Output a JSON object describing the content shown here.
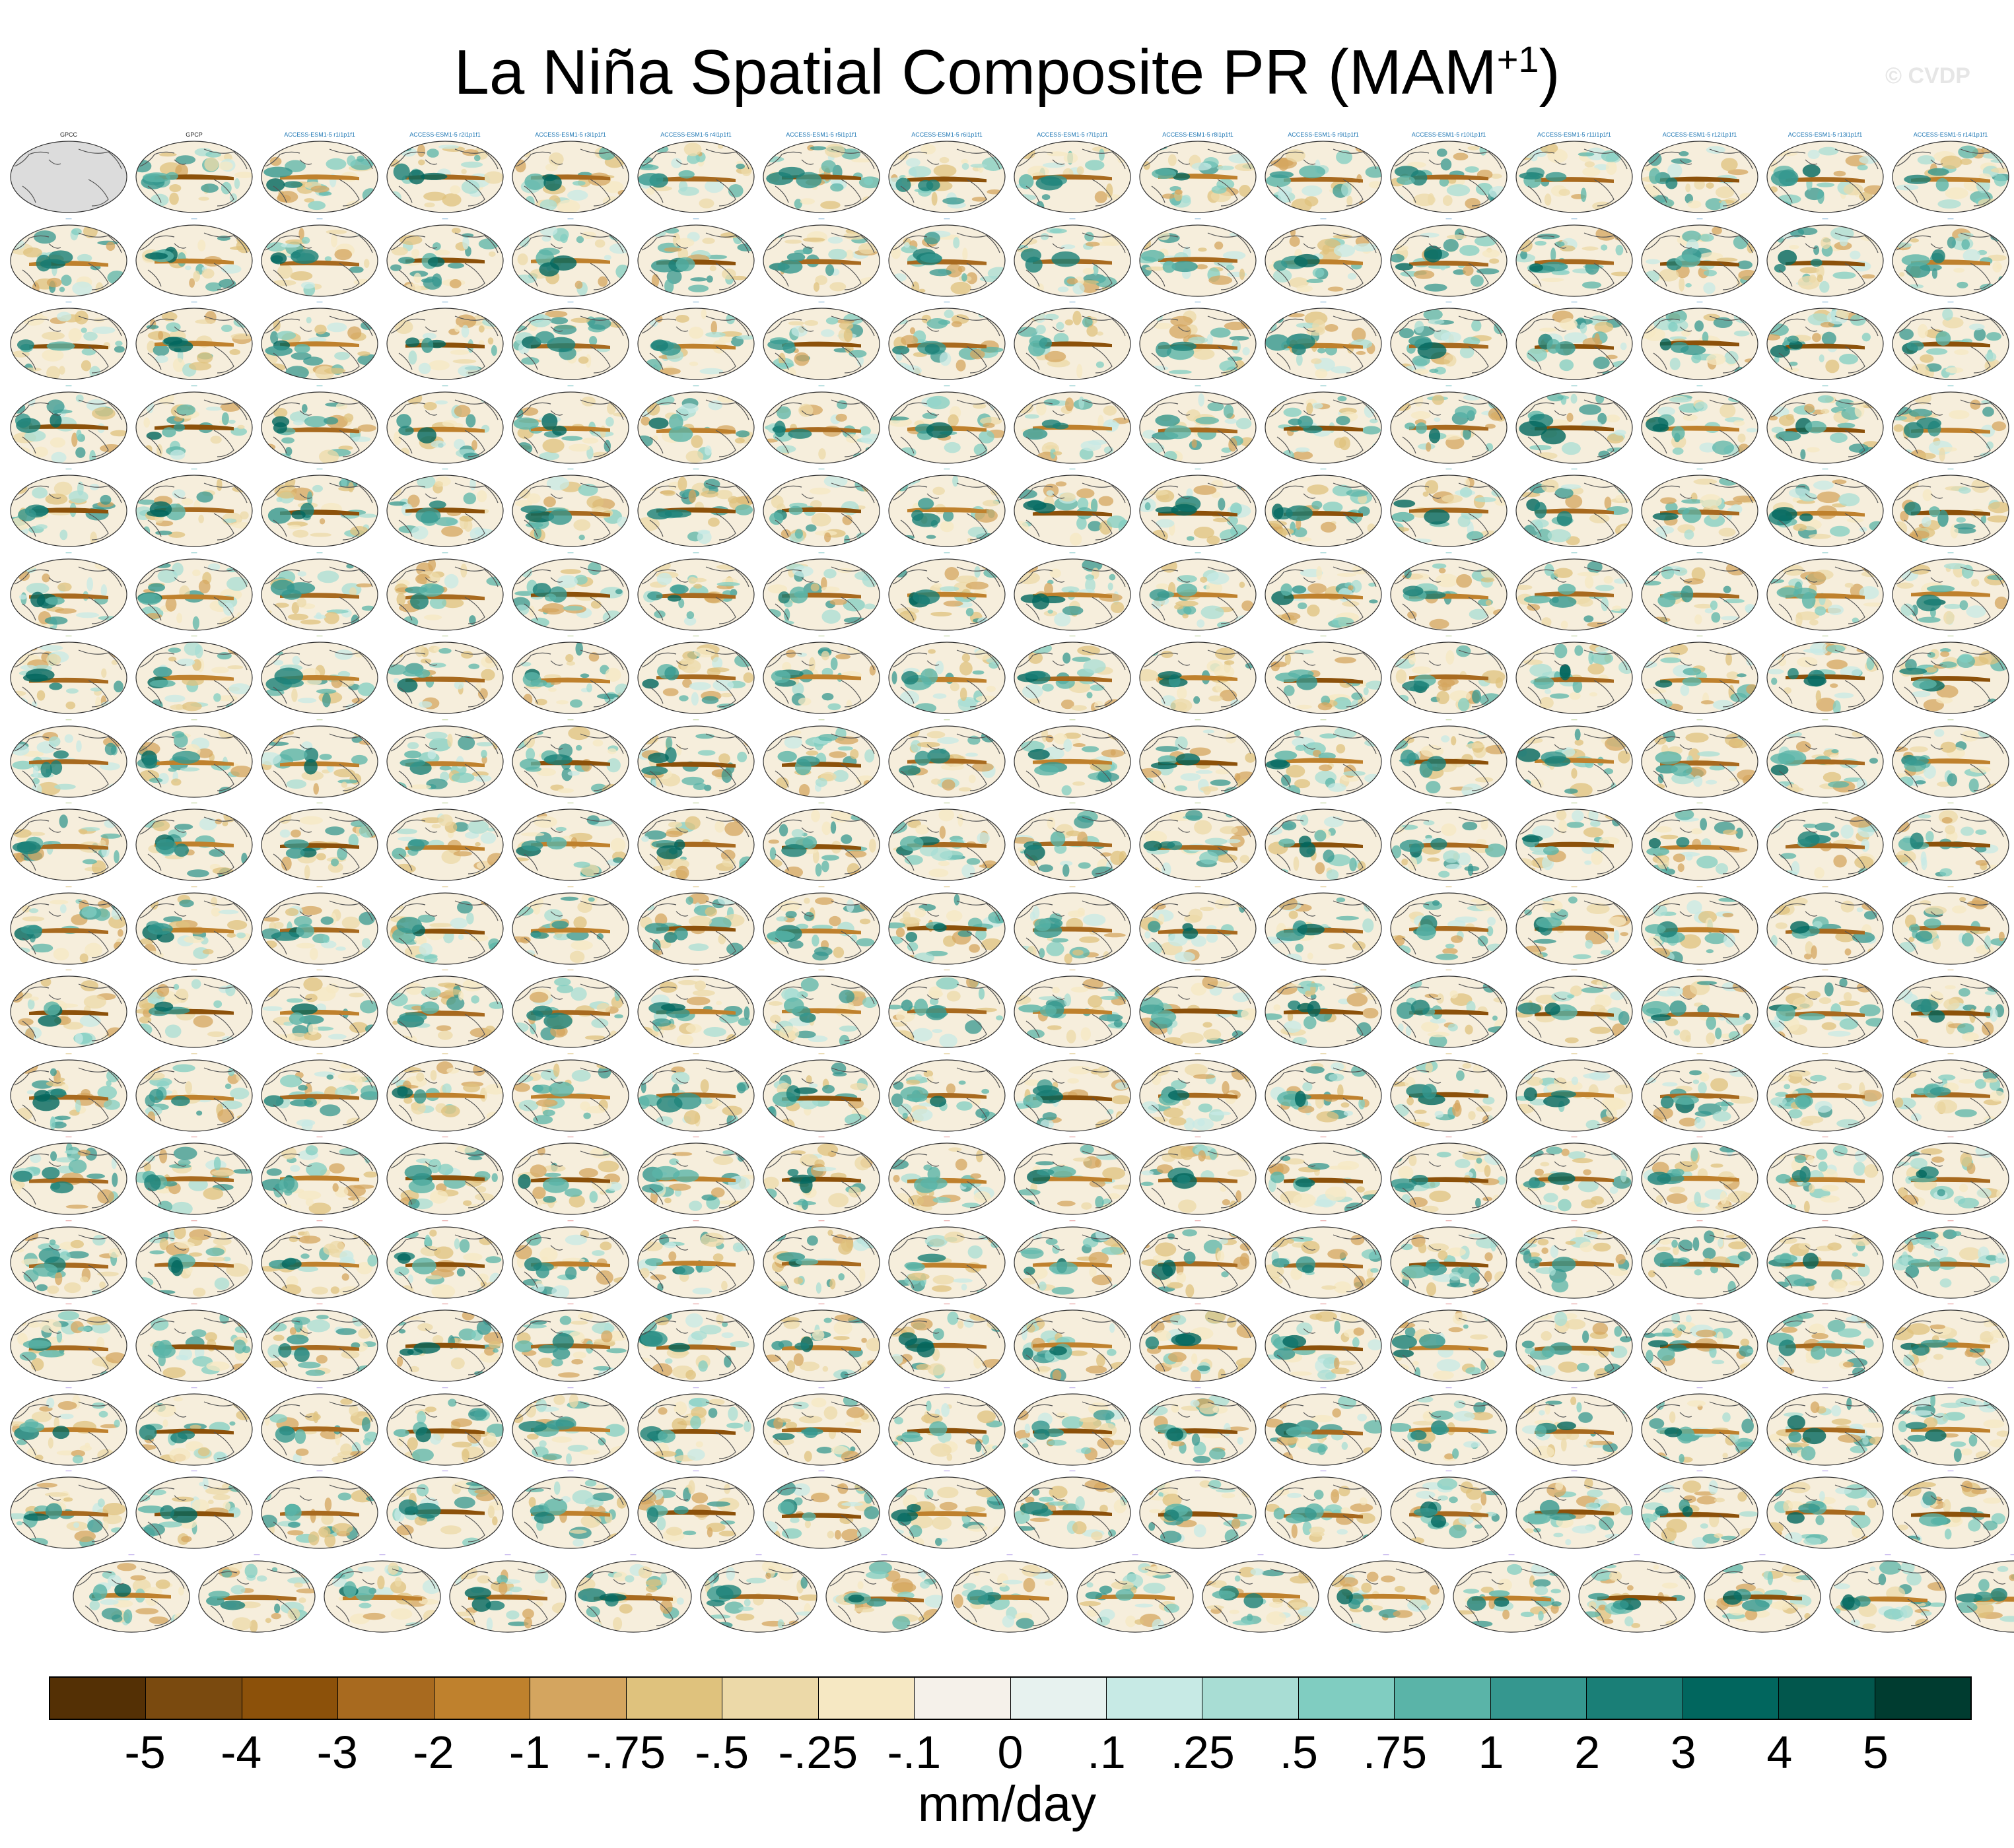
{
  "title": "La Niña Spatial Composite PR (MAM",
  "title_superscript": "+1",
  "title_close": ")",
  "watermark": "© CVDP",
  "units": "mm/day",
  "colorbar": {
    "colors": [
      "#543005",
      "#7a4a0f",
      "#8c510a",
      "#a86a1f",
      "#bf812d",
      "#d4a55f",
      "#dfc27d",
      "#ecd9a8",
      "#f6e8c3",
      "#f5f1ea",
      "#e7f2ef",
      "#c7eae5",
      "#a8ddd4",
      "#80cdc1",
      "#5ab4a8",
      "#35978f",
      "#1a7f77",
      "#01665e",
      "#02574d",
      "#003c30"
    ],
    "tick_labels": [
      "-5",
      "-4",
      "-3",
      "-2",
      "-1",
      "-.75",
      "-.5",
      "-.25",
      "-.1",
      "0",
      ".1",
      ".25",
      ".5",
      ".75",
      "1",
      "2",
      "3",
      "4",
      "5"
    ]
  },
  "chart_data": {
    "type": "heatmap",
    "title": "La Niña Spatial Composite PR (MAM+1)",
    "units": "mm/day",
    "levels": [
      -5,
      -4,
      -3,
      -2,
      -1,
      -0.75,
      -0.5,
      -0.25,
      -0.1,
      0,
      0.1,
      0.25,
      0.5,
      0.75,
      1,
      2,
      3,
      4,
      5
    ],
    "panel_count": 288,
    "panels_per_row": 16,
    "panel_titles": [
      "GPCC",
      "GPCP",
      "ACCESS-ESM1-5 r1i1p1f1",
      "ACCESS-ESM1-5 r2i1p1f1",
      "ACCESS-ESM1-5 r3i1p1f1",
      "ACCESS-ESM1-5 r4i1p1f1",
      "ACCESS-ESM1-5 r5i1p1f1",
      "ACCESS-ESM1-5 r6i1p1f1",
      "ACCESS-ESM1-5 r7i1p1f1",
      "ACCESS-ESM1-5 r8i1p1f1",
      "ACCESS-ESM1-5 r9i1p1f1",
      "ACCESS-ESM1-5 r10i1p1f1",
      "ACCESS-ESM1-5 r11i1p1f1",
      "ACCESS-ESM1-5 r12i1p1f1",
      "ACCESS-ESM1-5 r13i1p1f1",
      "ACCESS-ESM1-5 r14i1p1f1"
    ],
    "label_colors": [
      "#1f77b4",
      "#1f9e9e",
      "#8ab04a",
      "#c9a23a",
      "#d05050",
      "#8a6ad8"
    ]
  }
}
